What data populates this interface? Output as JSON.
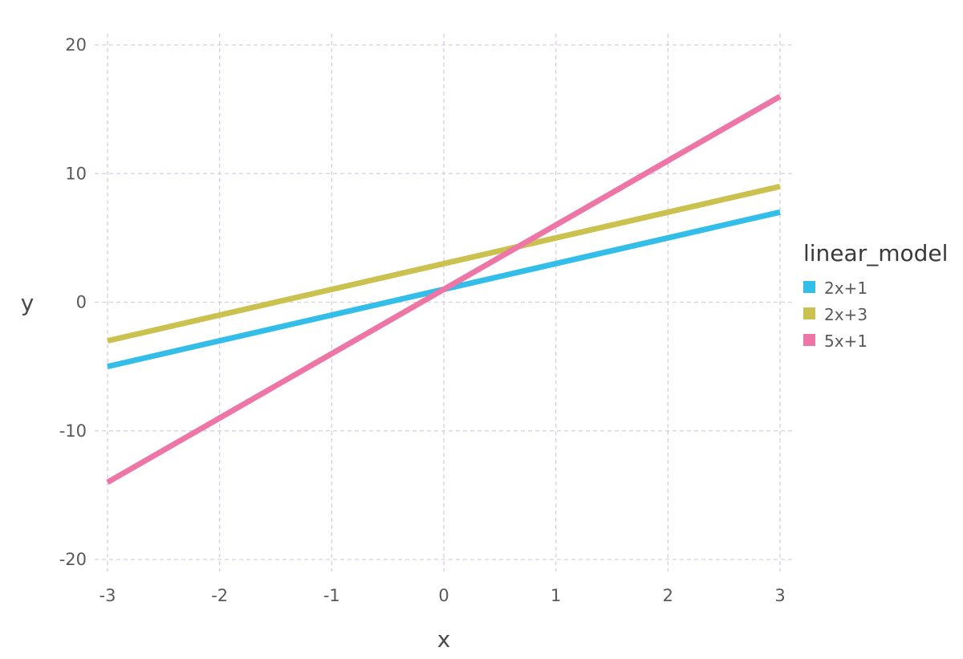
{
  "chart_data": {
    "type": "line",
    "title": "",
    "xlabel": "x",
    "ylabel": "y",
    "xlim": [
      -3,
      3
    ],
    "ylim": [
      -20,
      20
    ],
    "x_ticks": [
      -3,
      -2,
      -1,
      0,
      1,
      2,
      3
    ],
    "y_ticks": [
      -20,
      -10,
      0,
      10,
      20
    ],
    "x_tick_labels": [
      "-3",
      "-2",
      "-1",
      "0",
      "1",
      "2",
      "3"
    ],
    "y_tick_labels": [
      "-20",
      "-10",
      "0",
      "10",
      "20"
    ],
    "grid": true,
    "legend": {
      "title": "linear_model",
      "placement": "right"
    },
    "series": [
      {
        "name": "2x+1",
        "color": "#33bde9",
        "x": [
          -3,
          3
        ],
        "y": [
          -5,
          7
        ]
      },
      {
        "name": "2x+3",
        "color": "#cbc14f",
        "x": [
          -3,
          3
        ],
        "y": [
          -3,
          9
        ]
      },
      {
        "name": "5x+1",
        "color": "#ee76a6",
        "x": [
          -3,
          3
        ],
        "y": [
          -14,
          16
        ]
      }
    ]
  }
}
